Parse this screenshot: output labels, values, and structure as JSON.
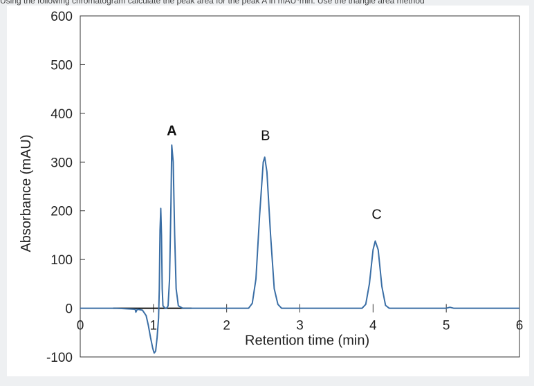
{
  "header_text": "Using the following chromatogram calculate the peak area for the peak A in mAU*min. Use the triangle area method",
  "chart_data": {
    "type": "line",
    "xlabel": "Retention time (min)",
    "ylabel": "Absorbance (mAU)",
    "xlim": [
      0,
      6
    ],
    "ylim": [
      -100,
      600
    ],
    "x_ticks": [
      0,
      1,
      2,
      3,
      4,
      5,
      6
    ],
    "y_ticks": [
      -100,
      0,
      100,
      200,
      300,
      400,
      500,
      600
    ],
    "grid": false,
    "line_color": "#3a6ea5",
    "series": [
      {
        "values_note": "trace",
        "points": [
          [
            0,
            0
          ],
          [
            0.5,
            0
          ],
          [
            0.75,
            -2
          ],
          [
            0.76,
            -8
          ],
          [
            0.78,
            -2
          ],
          [
            0.85,
            -4
          ],
          [
            0.9,
            -15
          ],
          [
            0.93,
            -35
          ],
          [
            0.96,
            -60
          ],
          [
            0.99,
            -82
          ],
          [
            1.01,
            -92
          ],
          [
            1.03,
            -88
          ],
          [
            1.05,
            -60
          ],
          [
            1.07,
            -20
          ],
          [
            1.08,
            40
          ],
          [
            1.09,
            160
          ],
          [
            1.1,
            205
          ],
          [
            1.11,
            150
          ],
          [
            1.12,
            40
          ],
          [
            1.13,
            5
          ],
          [
            1.16,
            0
          ],
          [
            1.18,
            0
          ],
          [
            1.2,
            5
          ],
          [
            1.22,
            60
          ],
          [
            1.24,
            220
          ],
          [
            1.25,
            335
          ],
          [
            1.27,
            300
          ],
          [
            1.29,
            150
          ],
          [
            1.31,
            40
          ],
          [
            1.34,
            5
          ],
          [
            1.4,
            0
          ],
          [
            2.3,
            0
          ],
          [
            2.35,
            10
          ],
          [
            2.4,
            60
          ],
          [
            2.45,
            190
          ],
          [
            2.5,
            300
          ],
          [
            2.52,
            310
          ],
          [
            2.55,
            280
          ],
          [
            2.6,
            150
          ],
          [
            2.65,
            40
          ],
          [
            2.7,
            8
          ],
          [
            2.75,
            0
          ],
          [
            3.85,
            0
          ],
          [
            3.9,
            8
          ],
          [
            3.95,
            50
          ],
          [
            4.0,
            120
          ],
          [
            4.03,
            138
          ],
          [
            4.07,
            120
          ],
          [
            4.12,
            45
          ],
          [
            4.17,
            6
          ],
          [
            4.22,
            0
          ],
          [
            5.0,
            0
          ],
          [
            5.05,
            2
          ],
          [
            5.1,
            0
          ],
          [
            6.0,
            0
          ]
        ]
      }
    ],
    "baseline_segment": {
      "x": [
        0.45,
        1.52
      ],
      "y": 0,
      "color": "#111111"
    },
    "annotations": [
      {
        "text": "A",
        "x": 1.25,
        "y": 355,
        "bold": true
      },
      {
        "text": "B",
        "x": 2.53,
        "y": 345,
        "bold": false
      },
      {
        "text": "C",
        "x": 4.05,
        "y": 183,
        "bold": false
      }
    ]
  }
}
